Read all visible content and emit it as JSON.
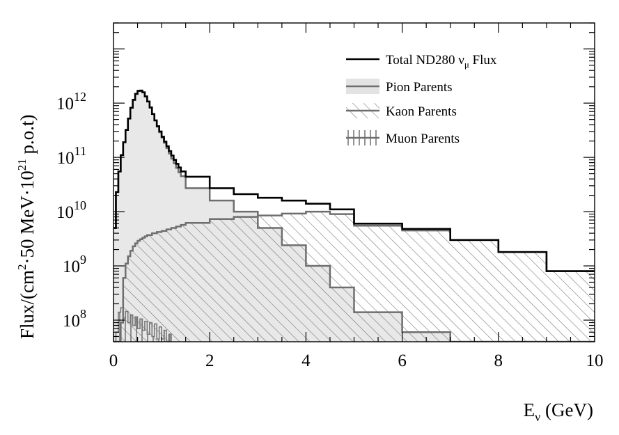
{
  "chart_data": {
    "type": "area",
    "xlabel": {
      "main": "E",
      "sub": "ν",
      "rest": " (GeV)"
    },
    "ylabel": {
      "p1": "Flux/(cm",
      "sup1": "2",
      "p2": "·50 MeV·10",
      "sup2": "21",
      "p3": " p.o.t)"
    },
    "xlim": [
      0,
      10
    ],
    "ylim": [
      40000000,
      30000000000000
    ],
    "yscale": "log",
    "grid": false,
    "legend_position": "top-right",
    "x_ticks": [
      {
        "value": 0,
        "label": "0"
      },
      {
        "value": 2,
        "label": "2"
      },
      {
        "value": 4,
        "label": "4"
      },
      {
        "value": 6,
        "label": "6"
      },
      {
        "value": 8,
        "label": "8"
      },
      {
        "value": 10,
        "label": "10"
      }
    ],
    "y_ticks": [
      {
        "value": 100000000,
        "base": "10",
        "exp": "8"
      },
      {
        "value": 1000000000,
        "base": "10",
        "exp": "9"
      },
      {
        "value": 10000000000,
        "base": "10",
        "exp": "10"
      },
      {
        "value": 100000000000,
        "base": "10",
        "exp": "11"
      },
      {
        "value": 1000000000000,
        "base": "10",
        "exp": "12"
      }
    ],
    "series": [
      {
        "name": {
          "main": "Total ND280 ",
          "nu": "ν",
          "sub": "μ",
          "rest": " Flux"
        },
        "style": "black-line",
        "color": "#000000",
        "x": [
          0.0,
          0.05,
          0.1,
          0.15,
          0.2,
          0.25,
          0.3,
          0.35,
          0.4,
          0.45,
          0.5,
          0.55,
          0.6,
          0.65,
          0.7,
          0.75,
          0.8,
          0.85,
          0.9,
          0.95,
          1.0,
          1.05,
          1.1,
          1.15,
          1.2,
          1.25,
          1.3,
          1.35,
          1.4,
          1.5,
          2.0,
          2.5,
          3.0,
          3.5,
          4.0,
          4.5,
          5.0,
          6.0,
          7.0,
          8.0,
          9.0,
          10.0
        ],
        "y": [
          5000000000,
          23000000000,
          55000000000,
          110000000000,
          190000000000,
          320000000000,
          520000000000,
          820000000000,
          1150000000000,
          1480000000000,
          1680000000000,
          1700000000000,
          1580000000000,
          1330000000000,
          1070000000000,
          830000000000,
          630000000000,
          480000000000,
          375000000000,
          300000000000,
          240000000000,
          195000000000,
          160000000000,
          130000000000,
          108000000000,
          90000000000,
          76000000000,
          65000000000,
          55000000000,
          44000000000,
          27000000000,
          21000000000,
          18000000000,
          16000000000,
          14000000000,
          11000000000,
          6000000000,
          4800000000,
          3000000000,
          1800000000,
          800000000,
          800000000
        ]
      },
      {
        "name": "Pion Parents",
        "style": "gray-filled",
        "color": "#6e6e6e",
        "fill": "#e8e8e8",
        "x": [
          0.0,
          0.05,
          0.1,
          0.15,
          0.2,
          0.25,
          0.3,
          0.35,
          0.4,
          0.45,
          0.5,
          0.55,
          0.6,
          0.65,
          0.7,
          0.75,
          0.8,
          0.85,
          0.9,
          0.95,
          1.0,
          1.05,
          1.1,
          1.15,
          1.2,
          1.25,
          1.3,
          1.35,
          1.4,
          1.5,
          2.0,
          2.5,
          3.0,
          3.5,
          4.0,
          4.5,
          5.0,
          6.0,
          7.0,
          8.0,
          9.0,
          10.0
        ],
        "y": [
          5000000000,
          23000000000,
          55000000000,
          110000000000,
          190000000000,
          320000000000,
          520000000000,
          820000000000,
          1150000000000,
          1480000000000,
          1680000000000,
          1700000000000,
          1580000000000,
          1330000000000,
          1070000000000,
          830000000000,
          630000000000,
          480000000000,
          370000000000,
          290000000000,
          230000000000,
          185000000000,
          148000000000,
          118000000000,
          95000000000,
          78000000000,
          64000000000,
          53000000000,
          45000000000,
          27000000000,
          16000000000,
          10000000000,
          5000000000,
          2400000000,
          1000000000,
          400000000,
          140000000,
          60000000,
          40000000,
          40000000,
          40000000,
          40000000
        ]
      },
      {
        "name": "Kaon Parents",
        "style": "hatched-diagonal",
        "color": "#6e6e6e",
        "x": [
          0.0,
          0.05,
          0.1,
          0.15,
          0.2,
          0.25,
          0.3,
          0.35,
          0.4,
          0.45,
          0.5,
          0.55,
          0.6,
          0.65,
          0.7,
          0.8,
          0.9,
          1.0,
          1.1,
          1.2,
          1.3,
          1.4,
          1.5,
          2.0,
          2.5,
          3.0,
          3.5,
          4.0,
          4.5,
          5.0,
          6.0,
          7.0,
          8.0,
          9.0,
          10.0
        ],
        "y": [
          40000000,
          40000000,
          40000000,
          90000000,
          600000000,
          1100000000,
          1500000000,
          1900000000,
          2300000000,
          2600000000,
          2900000000,
          3100000000,
          3300000000,
          3500000000,
          3700000000,
          4000000000,
          4200000000,
          4400000000,
          4700000000,
          5000000000,
          5300000000,
          5700000000,
          6200000000,
          7300000000,
          8000000000,
          8500000000,
          9200000000,
          10000000000,
          9000000000,
          5500000000,
          4500000000,
          3000000000,
          1800000000,
          800000000,
          800000000
        ]
      },
      {
        "name": "Muon Parents",
        "style": "hatched-vertical",
        "color": "#6e6e6e",
        "x": [
          0.05,
          0.1,
          0.15,
          0.2,
          0.25,
          0.3,
          0.35,
          0.4,
          0.45,
          0.5,
          0.55,
          0.6,
          0.65,
          0.7,
          0.75,
          0.8,
          0.85,
          0.9,
          0.95,
          1.0,
          1.05,
          1.1,
          1.15
        ],
        "y": [
          60000000,
          140000000,
          170000000,
          110000000,
          145000000,
          90000000,
          125000000,
          80000000,
          115000000,
          70000000,
          105000000,
          65000000,
          95000000,
          55000000,
          90000000,
          50000000,
          85000000,
          45000000,
          75000000,
          45000000,
          65000000,
          40000000,
          55000000
        ]
      }
    ]
  }
}
